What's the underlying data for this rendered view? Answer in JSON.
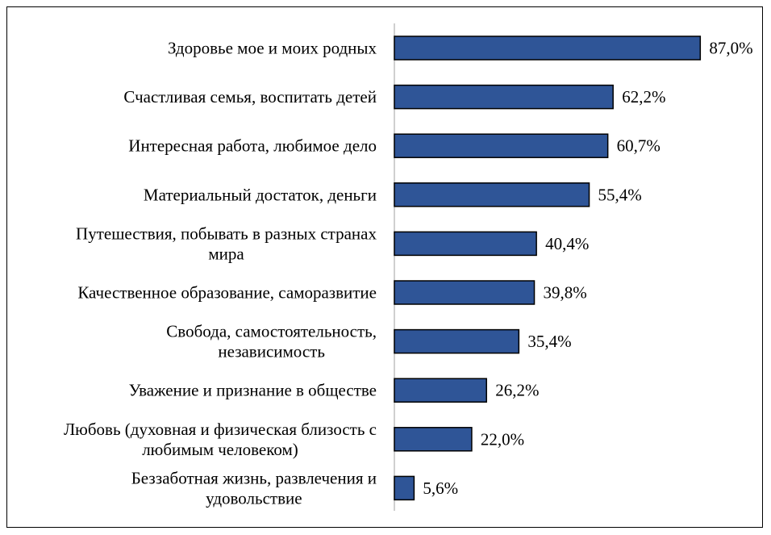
{
  "chart_data": {
    "type": "bar",
    "orientation": "horizontal",
    "title": "",
    "xlabel": "",
    "ylabel": "",
    "categories": [
      [
        "Здоровье мое и моих родных"
      ],
      [
        "Счастливая семья, воспитать детей"
      ],
      [
        "Интересная работа, любимое дело"
      ],
      [
        "Материальный достаток, деньги"
      ],
      [
        "Путешествия, побывать в разных странах",
        "мира"
      ],
      [
        "Качественное образование, саморазвитие"
      ],
      [
        "Свобода, самостоятельность,",
        "независимость"
      ],
      [
        "Уважение и признание в обществе"
      ],
      [
        "Любовь (духовная и физическая близость с",
        "любимым человеком)"
      ],
      [
        "Беззаботная жизнь, развлечения и",
        "удовольствие"
      ]
    ],
    "values": [
      87.0,
      62.2,
      60.7,
      55.4,
      40.4,
      39.8,
      35.4,
      26.2,
      22.0,
      5.6
    ],
    "value_labels": [
      "87,0%",
      "62,2%",
      "60,7%",
      "55,4%",
      "40,4%",
      "39,8%",
      "35,4%",
      "26,2%",
      "22,0%",
      "5,6%"
    ],
    "xlim": [
      0,
      100
    ],
    "grid": false,
    "legend": "none",
    "colors": {
      "bar_fill": "#2F5597",
      "bar_stroke": "#000000",
      "axis": "#BFBFBF",
      "text": "#000000"
    }
  }
}
